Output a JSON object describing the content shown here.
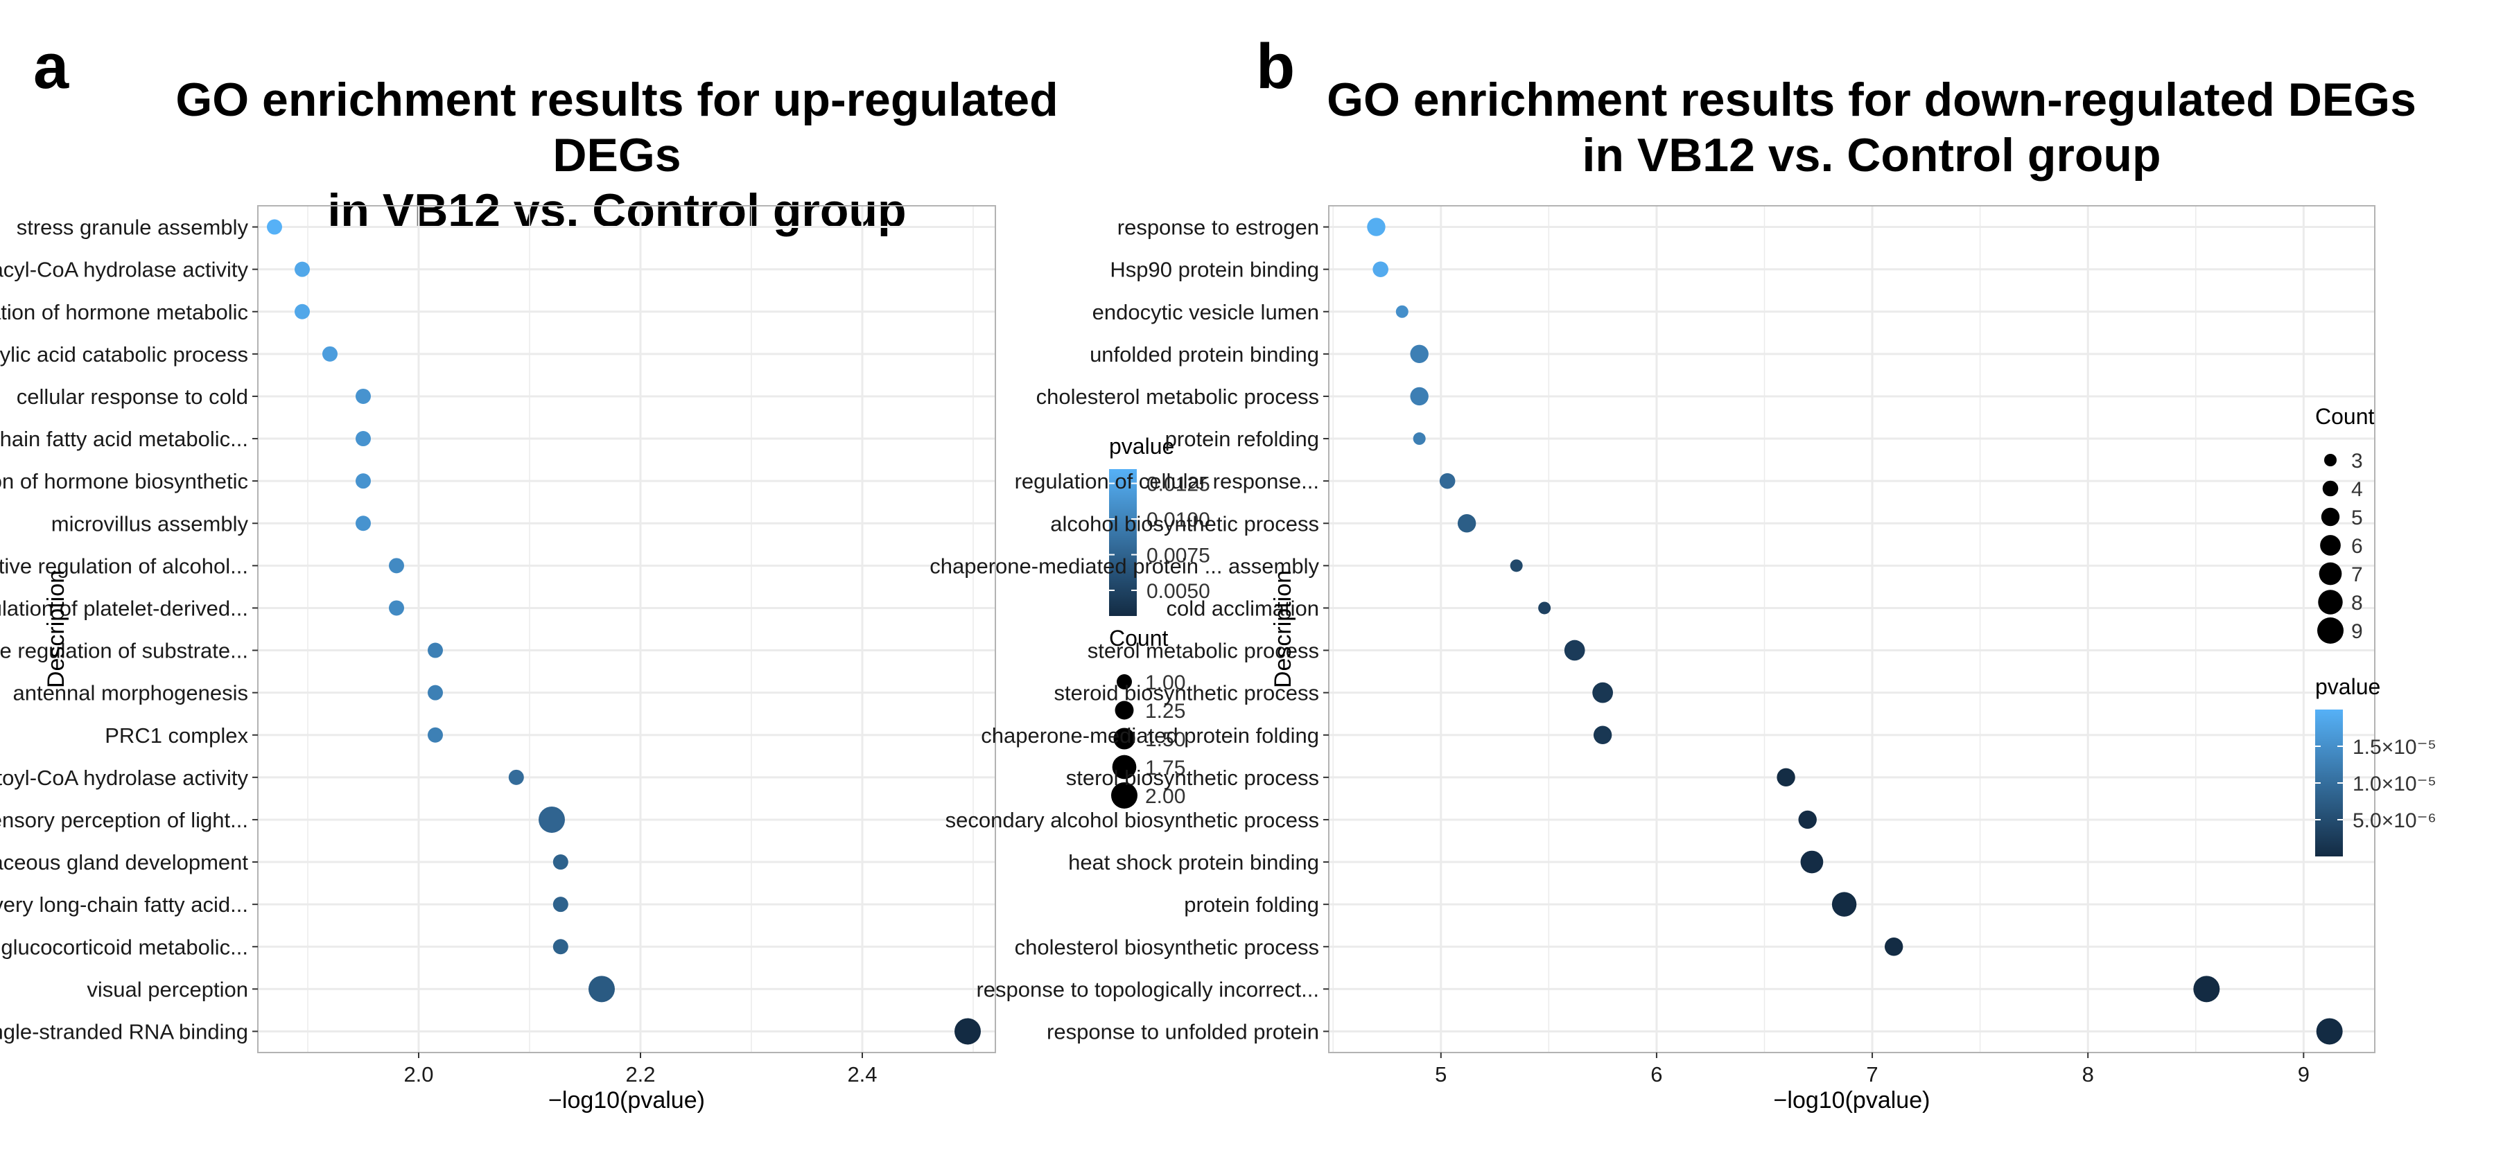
{
  "panels": [
    {
      "letter": "a",
      "title_line1": "GO enrichment results for up-regulated DEGs",
      "title_line2": "in VB12 vs. Control group"
    },
    {
      "letter": "b",
      "title_line1": "GO enrichment results for down-regulated DEGs",
      "title_line2": "in VB12 vs. Control group"
    }
  ],
  "colors": {
    "low": "#132B43",
    "high": "#56B1F7",
    "grid": "#EBEBEB",
    "frame": "#B3B3B3"
  },
  "chart_data": [
    {
      "type": "scatter",
      "title": "GO enrichment results for up-regulated DEGs in VB12 vs. Control group",
      "xlabel": "−log10(pvalue)",
      "ylabel": "Description",
      "xlim": [
        1.855,
        2.52
      ],
      "xticks": [
        2.0,
        2.2,
        2.4
      ],
      "xtick_labels": [
        "2.0",
        "2.2",
        "2.4"
      ],
      "categories": [
        "stress granule assembly",
        "acyl-CoA hydrolase activity",
        "negative regulation of hormone metabolic",
        "dicarboxylic acid catabolic process",
        "cellular response to cold",
        "short-chain fatty acid metabolic...",
        "negative regulation of hormone biosynthetic",
        "microvillus assembly",
        "negative regulation of alcohol...",
        "negative regulation of platelet-derived...",
        "negative regulation of substrate...",
        "antennal morphogenesis",
        "PRC1 complex",
        "palmitoyl-CoA hydrolase activity",
        "sensory perception of light...",
        "sebaceous gland development",
        "very long-chain fatty acid...",
        "regulation of glucocorticoid metabolic...",
        "visual perception",
        "single-stranded RNA binding"
      ],
      "x": [
        1.87,
        1.895,
        1.895,
        1.92,
        1.95,
        1.95,
        1.95,
        1.95,
        1.98,
        1.98,
        2.015,
        2.015,
        2.015,
        2.088,
        2.12,
        2.128,
        2.128,
        2.128,
        2.165,
        2.495
      ],
      "count": [
        1,
        1,
        1,
        1,
        1,
        1,
        1,
        1,
        1,
        1,
        1,
        1,
        1,
        1,
        2,
        1,
        1,
        1,
        2,
        2
      ],
      "pvalue": [
        0.0135,
        0.0127,
        0.0127,
        0.012,
        0.0112,
        0.0112,
        0.0112,
        0.0112,
        0.0105,
        0.0105,
        0.0097,
        0.0097,
        0.0097,
        0.0082,
        0.0076,
        0.0074,
        0.0074,
        0.0074,
        0.0068,
        0.0032
      ],
      "pvalue_range": [
        0.0032,
        0.0135
      ],
      "count_range": [
        1,
        2
      ],
      "legend_color": {
        "title": "pvalue",
        "ticks": [
          0.0125,
          0.01,
          0.0075,
          0.005
        ],
        "tick_labels": [
          "0.0125",
          "0.0100",
          "0.0075",
          "0.0050"
        ]
      },
      "legend_size": {
        "title": "Count",
        "values": [
          1.0,
          1.25,
          1.5,
          1.75,
          2.0
        ],
        "labels": [
          "1.00",
          "1.25",
          "1.50",
          "1.75",
          "2.00"
        ]
      }
    },
    {
      "type": "scatter",
      "title": "GO enrichment results for down-regulated DEGs in VB12 vs. Control group",
      "xlabel": "−log10(pvalue)",
      "ylabel": "Description",
      "xlim": [
        4.48,
        9.33
      ],
      "xticks": [
        5,
        6,
        7,
        8,
        9
      ],
      "xtick_labels": [
        "5",
        "6",
        "7",
        "8",
        "9"
      ],
      "categories": [
        "response to estrogen",
        "Hsp90 protein binding",
        "endocytic vesicle lumen",
        "unfolded protein binding",
        "cholesterol metabolic process",
        "protein refolding",
        "regulation of cellular response...",
        "alcohol biosynthetic process",
        "chaperone-mediated protein ... assembly",
        "cold acclimation",
        "sterol metabolic process",
        "steroid biosynthetic process",
        "chaperone-mediated protein folding",
        "sterol biosynthetic process",
        "secondary alcohol biosynthetic process",
        "heat shock protein binding",
        "protein folding",
        "cholesterol biosynthetic process",
        "response to topologically incorrect...",
        "response to unfolded protein"
      ],
      "x": [
        4.7,
        4.72,
        4.82,
        4.9,
        4.9,
        4.9,
        5.03,
        5.12,
        5.35,
        5.48,
        5.62,
        5.75,
        5.75,
        6.6,
        6.7,
        6.72,
        6.87,
        7.1,
        8.55,
        9.12
      ],
      "count": [
        5,
        4,
        3,
        5,
        5,
        3,
        4,
        5,
        3,
        3,
        6,
        6,
        5,
        5,
        5,
        7,
        8,
        5,
        9,
        9
      ],
      "pvalue": [
        1.95e-05,
        1.9e-05,
        1.5e-05,
        1.26e-05,
        1.26e-05,
        1.26e-05,
        9.3e-06,
        7.6e-06,
        4.5e-06,
        3.3e-06,
        2.4e-06,
        1.8e-06,
        1.8e-06,
        2.5e-07,
        2e-07,
        1.9e-07,
        1.3e-07,
        8e-08,
        3e-09,
        8e-10
      ],
      "pvalue_range": [
        1e-09,
        2e-05
      ],
      "count_range": [
        3,
        9
      ],
      "legend_size": {
        "title": "Count",
        "values": [
          3,
          4,
          5,
          6,
          7,
          8,
          9
        ],
        "labels": [
          "3",
          "4",
          "5",
          "6",
          "7",
          "8",
          "9"
        ]
      },
      "legend_color": {
        "title": "pvalue",
        "ticks": [
          1.5e-05,
          1e-05,
          5e-06
        ],
        "tick_labels": [
          "1.5×10⁻⁵",
          "1.0×10⁻⁵",
          "5.0×10⁻⁶"
        ]
      }
    }
  ]
}
